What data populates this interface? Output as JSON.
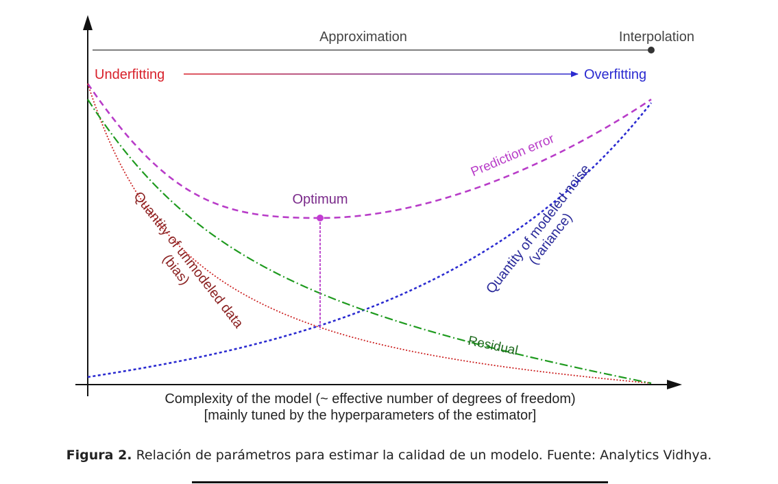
{
  "colors": {
    "underfitting": "#d8202a",
    "overfitting": "#2a2ad0",
    "prediction_error": "#b83cc8",
    "variance": "#2a2ad0",
    "bias": "#cc2222",
    "residual": "#1e9a1e",
    "axis": "#111111",
    "text_dark": "#444444",
    "optimum": "#7a2a8a",
    "bias_label": "#8b2222",
    "variance_label": "#2a2a9a",
    "residual_label": "#1e6a1e"
  },
  "diagram": {
    "top_left_label": "Approximation",
    "top_right_label": "Interpolation",
    "underfitting": "Underfitting",
    "overfitting": "Overfitting",
    "prediction_error": "Prediction error",
    "optimum": "Optimum",
    "variance_line1": "Quantity of modeled noise",
    "variance_line2": "(variance)",
    "bias_line1": "Quantity of unmodeled data",
    "bias_line2": "(bias)",
    "residual": "Residual",
    "xlabel_line1": "Complexity of the model (~ effective number of degrees of freedom)",
    "xlabel_line2": "[mainly tuned by the hyperparameters of the estimator]"
  },
  "caption": {
    "label": "Figura 2.",
    "text": " Relación de parámetros para estimar la calidad de un modelo. Fuente: Analytics Vidhya."
  }
}
